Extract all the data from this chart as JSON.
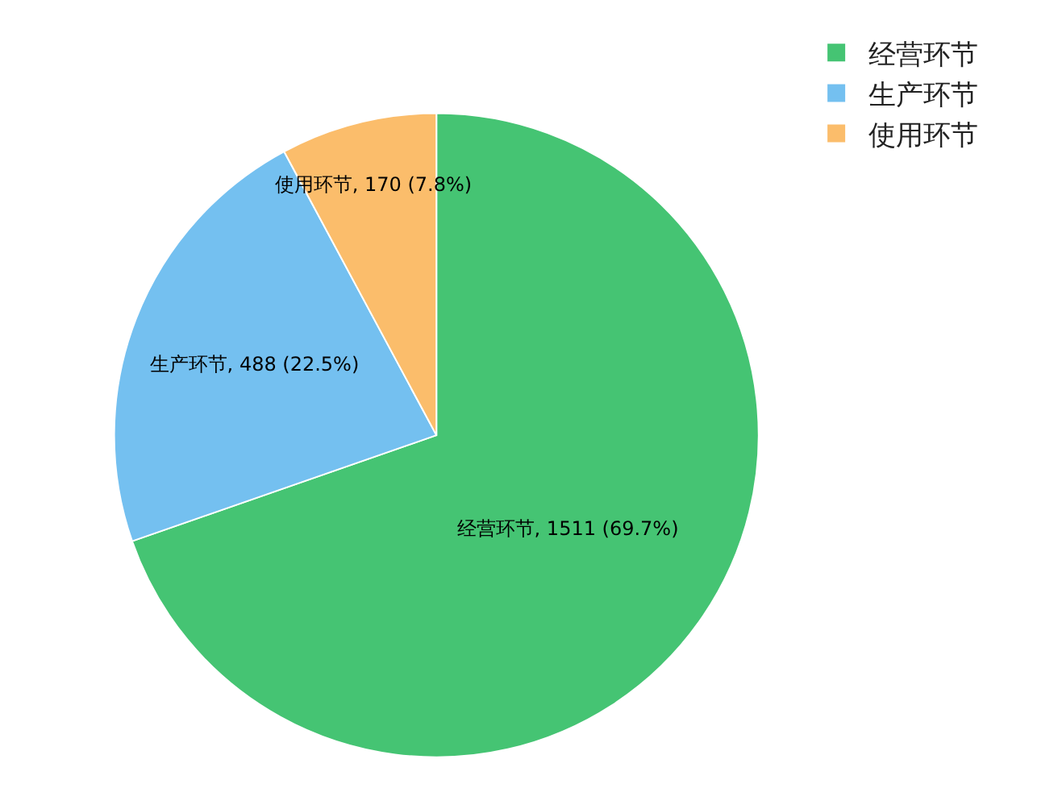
{
  "chart_data": {
    "type": "pie",
    "categories": [
      "经营环节",
      "生产环节",
      "使用环节"
    ],
    "values": [
      1511,
      488,
      170
    ],
    "colors": [
      "#45c473",
      "#74c0f0",
      "#fbbd6b"
    ],
    "value_labels": [
      "经营环节, 1511 (69.7%)",
      "生产环节, 488 (22.5%)",
      "使用环节, 170 (7.8%)"
    ],
    "legend": "top right"
  }
}
